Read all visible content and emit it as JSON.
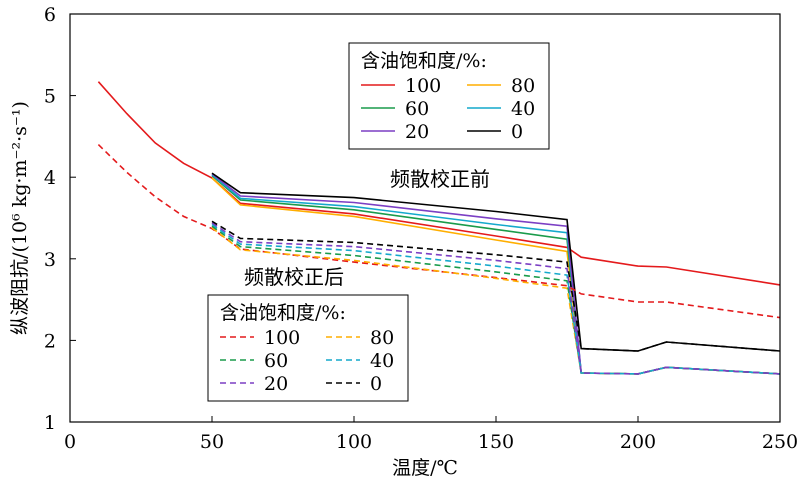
{
  "chart_data": {
    "type": "line",
    "xlabel": "温度/℃",
    "ylabel": "纵波阻抗/(10⁶ kg·m⁻²·s⁻¹)",
    "xlim": [
      0,
      250
    ],
    "ylim": [
      1,
      6
    ],
    "xticks": [
      0,
      50,
      100,
      150,
      200,
      250
    ],
    "yticks": [
      1,
      2,
      3,
      4,
      5,
      6
    ],
    "grid": false,
    "annotations": [
      {
        "text": "频散校正前",
        "x": 135,
        "y": 4.0
      },
      {
        "text": "频散校正后",
        "x": 85,
        "y": 2.78
      }
    ],
    "legends": [
      {
        "title": "含油饱和度/%:",
        "style": "solid",
        "placement": "upper-center",
        "entries": [
          "100",
          "80",
          "60",
          "40",
          "20",
          "0"
        ]
      },
      {
        "title": "含油饱和度/%:",
        "style": "dashed",
        "placement": "lower-left",
        "entries": [
          "100",
          "80",
          "60",
          "40",
          "20",
          "0"
        ]
      }
    ],
    "series": [
      {
        "name": "100",
        "style": "solid",
        "color": "#e41a1c",
        "points": [
          [
            10,
            5.17
          ],
          [
            20,
            4.78
          ],
          [
            30,
            4.42
          ],
          [
            40,
            4.17
          ],
          [
            50,
            3.99
          ],
          [
            60,
            3.68
          ],
          [
            100,
            3.55
          ],
          [
            150,
            3.28
          ],
          [
            175,
            3.14
          ],
          [
            180,
            3.02
          ],
          [
            200,
            2.91
          ],
          [
            210,
            2.9
          ],
          [
            250,
            2.68
          ]
        ]
      },
      {
        "name": "80",
        "style": "solid",
        "color": "#ffae00",
        "points": [
          [
            50,
            3.99
          ],
          [
            60,
            3.66
          ],
          [
            100,
            3.52
          ],
          [
            150,
            3.23
          ],
          [
            175,
            3.09
          ],
          [
            180,
            1.6
          ],
          [
            200,
            1.59
          ],
          [
            210,
            1.67
          ],
          [
            250,
            1.59
          ]
        ]
      },
      {
        "name": "60",
        "style": "solid",
        "color": "#1a9b4b",
        "points": [
          [
            50,
            4.02
          ],
          [
            60,
            3.72
          ],
          [
            100,
            3.6
          ],
          [
            150,
            3.36
          ],
          [
            175,
            3.24
          ],
          [
            180,
            1.6
          ],
          [
            200,
            1.59
          ],
          [
            210,
            1.67
          ],
          [
            250,
            1.59
          ]
        ]
      },
      {
        "name": "40",
        "style": "solid",
        "color": "#14a9cc",
        "points": [
          [
            50,
            4.03
          ],
          [
            60,
            3.74
          ],
          [
            100,
            3.64
          ],
          [
            150,
            3.42
          ],
          [
            175,
            3.32
          ],
          [
            180,
            1.6
          ],
          [
            200,
            1.59
          ],
          [
            210,
            1.67
          ],
          [
            250,
            1.59
          ]
        ]
      },
      {
        "name": "20",
        "style": "solid",
        "color": "#7b3fc4",
        "points": [
          [
            50,
            4.04
          ],
          [
            60,
            3.77
          ],
          [
            100,
            3.69
          ],
          [
            150,
            3.49
          ],
          [
            175,
            3.4
          ],
          [
            180,
            1.6
          ],
          [
            200,
            1.59
          ],
          [
            210,
            1.67
          ],
          [
            250,
            1.59
          ]
        ]
      },
      {
        "name": "0",
        "style": "solid",
        "color": "#000000",
        "points": [
          [
            50,
            4.05
          ],
          [
            60,
            3.81
          ],
          [
            100,
            3.75
          ],
          [
            150,
            3.58
          ],
          [
            175,
            3.48
          ],
          [
            180,
            1.9
          ],
          [
            200,
            1.87
          ],
          [
            210,
            1.98
          ],
          [
            250,
            1.87
          ]
        ]
      },
      {
        "name": "100",
        "style": "dashed",
        "color": "#e41a1c",
        "points": [
          [
            10,
            4.4
          ],
          [
            20,
            4.06
          ],
          [
            30,
            3.76
          ],
          [
            40,
            3.52
          ],
          [
            50,
            3.37
          ],
          [
            60,
            3.12
          ],
          [
            100,
            2.96
          ],
          [
            150,
            2.77
          ],
          [
            175,
            2.67
          ],
          [
            180,
            2.57
          ],
          [
            200,
            2.47
          ],
          [
            210,
            2.47
          ],
          [
            250,
            2.28
          ]
        ]
      },
      {
        "name": "80",
        "style": "dashed",
        "color": "#ffae00",
        "points": [
          [
            50,
            3.38
          ],
          [
            60,
            3.11
          ],
          [
            100,
            2.98
          ],
          [
            150,
            2.76
          ],
          [
            175,
            2.64
          ],
          [
            180,
            1.6
          ],
          [
            200,
            1.59
          ],
          [
            210,
            1.67
          ],
          [
            250,
            1.59
          ]
        ]
      },
      {
        "name": "60",
        "style": "dashed",
        "color": "#1a9b4b",
        "points": [
          [
            50,
            3.4
          ],
          [
            60,
            3.15
          ],
          [
            100,
            3.04
          ],
          [
            150,
            2.84
          ],
          [
            175,
            2.73
          ],
          [
            180,
            1.6
          ],
          [
            200,
            1.59
          ],
          [
            210,
            1.67
          ],
          [
            250,
            1.59
          ]
        ]
      },
      {
        "name": "40",
        "style": "dashed",
        "color": "#14a9cc",
        "points": [
          [
            50,
            3.42
          ],
          [
            60,
            3.18
          ],
          [
            100,
            3.1
          ],
          [
            150,
            2.91
          ],
          [
            175,
            2.8
          ],
          [
            180,
            1.6
          ],
          [
            200,
            1.59
          ],
          [
            210,
            1.67
          ],
          [
            250,
            1.59
          ]
        ]
      },
      {
        "name": "20",
        "style": "dashed",
        "color": "#7b3fc4",
        "points": [
          [
            50,
            3.44
          ],
          [
            60,
            3.21
          ],
          [
            100,
            3.15
          ],
          [
            150,
            2.98
          ],
          [
            175,
            2.88
          ],
          [
            180,
            1.6
          ],
          [
            200,
            1.59
          ],
          [
            210,
            1.67
          ],
          [
            250,
            1.59
          ]
        ]
      },
      {
        "name": "0",
        "style": "dashed",
        "color": "#000000",
        "points": [
          [
            50,
            3.46
          ],
          [
            60,
            3.25
          ],
          [
            100,
            3.2
          ],
          [
            150,
            3.05
          ],
          [
            175,
            2.96
          ],
          [
            180,
            1.9
          ],
          [
            200,
            1.87
          ],
          [
            210,
            1.98
          ],
          [
            250,
            1.87
          ]
        ]
      }
    ]
  }
}
